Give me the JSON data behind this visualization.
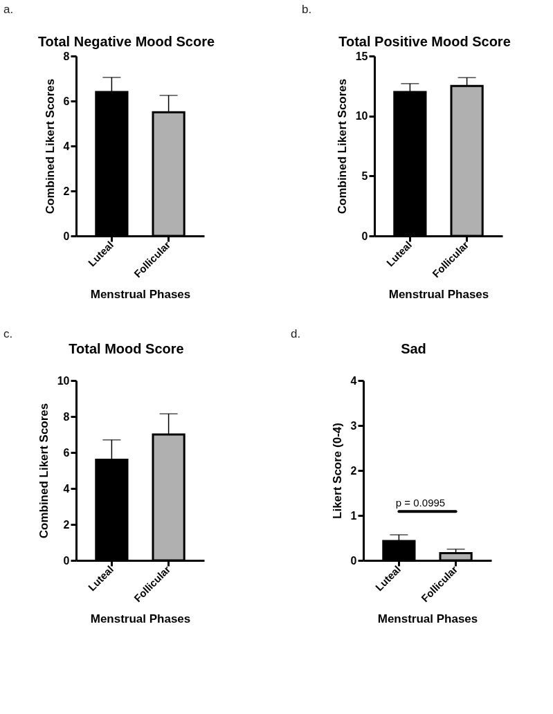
{
  "chart_data": [
    {
      "type": "bar",
      "title": "Total Negative Mood Score",
      "annotations": [
        "a."
      ],
      "xlabel": "Menstrual Phases",
      "ylabel": "Combined Likert Scores",
      "categories": [
        "Luteal",
        "Follicular"
      ],
      "values": [
        6.4,
        5.5
      ],
      "errors": [
        [
          6.4,
          7.05
        ],
        [
          5.5,
          6.25
        ]
      ],
      "colors": [
        "#000000",
        "#b0b0b0"
      ],
      "ylim": [
        0,
        8
      ],
      "yticks": [
        0,
        2,
        4,
        6,
        8
      ],
      "grid": false,
      "legend": false
    },
    {
      "type": "bar",
      "title": "Total Positive Mood Score",
      "annotations": [
        "b."
      ],
      "xlabel": "Menstrual Phases",
      "ylabel": "Combined Likert Scores",
      "categories": [
        "Luteal",
        "Follicular"
      ],
      "values": [
        12.0,
        12.5
      ],
      "errors": [
        [
          12.0,
          12.7
        ],
        [
          12.5,
          13.2
        ]
      ],
      "colors": [
        "#000000",
        "#b0b0b0"
      ],
      "ylim": [
        0,
        15
      ],
      "yticks": [
        0,
        5,
        10,
        15
      ],
      "grid": false,
      "legend": false
    },
    {
      "type": "bar",
      "title": "Total Mood Score",
      "annotations": [
        "c."
      ],
      "xlabel": "Menstrual Phases",
      "ylabel": "Combined Likert Scores",
      "categories": [
        "Luteal",
        "Follicular"
      ],
      "values": [
        5.6,
        7.0
      ],
      "errors": [
        [
          5.6,
          6.7
        ],
        [
          7.0,
          8.15
        ]
      ],
      "colors": [
        "#000000",
        "#b0b0b0"
      ],
      "ylim": [
        0,
        10
      ],
      "yticks": [
        0,
        2,
        4,
        6,
        8,
        10
      ],
      "grid": false,
      "legend": false
    },
    {
      "type": "bar",
      "title": "Sad",
      "annotations": [
        "d.",
        "p = 0.0995"
      ],
      "xlabel": "Menstrual Phases",
      "ylabel": "Likert Score (0-4)",
      "categories": [
        "Luteal",
        "Follicular"
      ],
      "values": [
        0.43,
        0.16
      ],
      "errors": [
        [
          0.43,
          0.57
        ],
        [
          0.16,
          0.25
        ]
      ],
      "colors": [
        "#000000",
        "#b0b0b0"
      ],
      "ylim": [
        0,
        4
      ],
      "yticks": [
        0,
        1,
        2,
        3,
        4
      ],
      "grid": false,
      "legend": false
    }
  ]
}
